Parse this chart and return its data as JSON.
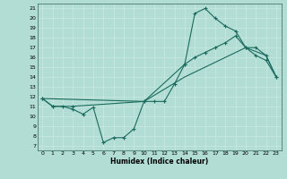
{
  "xlabel": "Humidex (Indice chaleur)",
  "bg_color": "#b2ddd4",
  "grid_color": "#d0ece8",
  "line_color": "#1a6b5e",
  "xlim": [
    -0.5,
    23.5
  ],
  "ylim": [
    6.5,
    21.5
  ],
  "xticks": [
    0,
    1,
    2,
    3,
    4,
    5,
    6,
    7,
    8,
    9,
    10,
    11,
    12,
    13,
    14,
    15,
    16,
    17,
    18,
    19,
    20,
    21,
    22,
    23
  ],
  "yticks": [
    7,
    8,
    9,
    10,
    11,
    12,
    13,
    14,
    15,
    16,
    17,
    18,
    19,
    20,
    21
  ],
  "curve1_x": [
    0,
    1,
    2,
    3,
    4,
    5,
    6,
    7,
    8,
    9,
    10,
    11,
    12,
    13,
    14,
    15,
    16,
    17,
    18,
    19,
    20,
    21,
    22,
    23
  ],
  "curve1_y": [
    11.8,
    11.0,
    11.0,
    10.7,
    10.2,
    10.9,
    7.3,
    7.8,
    7.8,
    8.7,
    11.5,
    11.5,
    11.5,
    13.3,
    15.3,
    20.5,
    21.0,
    20.0,
    19.2,
    18.7,
    17.0,
    16.2,
    15.7,
    14.0
  ],
  "curve2_x": [
    0,
    1,
    3,
    10,
    14,
    15,
    16,
    17,
    18,
    19,
    20,
    21,
    22,
    23
  ],
  "curve2_y": [
    11.8,
    11.0,
    11.0,
    11.5,
    15.3,
    16.0,
    16.5,
    17.0,
    17.5,
    18.2,
    17.0,
    17.0,
    16.2,
    14.0
  ],
  "curve3_x": [
    0,
    10,
    14,
    20,
    22,
    23
  ],
  "curve3_y": [
    11.8,
    11.5,
    14.0,
    17.0,
    16.2,
    14.0
  ]
}
